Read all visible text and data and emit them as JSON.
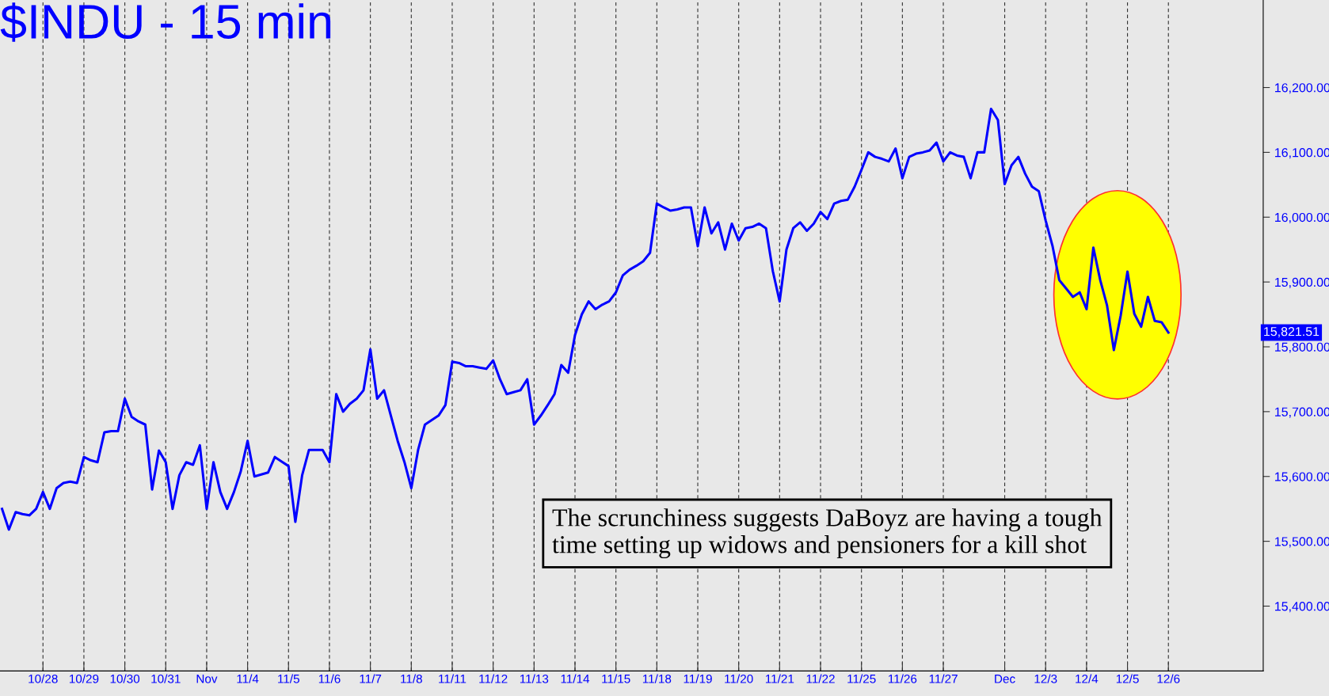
{
  "chart_data": {
    "type": "line",
    "title": "$INDU - 15 min",
    "categories": [
      null,
      null,
      null,
      null,
      null,
      null,
      "10/28",
      null,
      null,
      null,
      null,
      null,
      "10/29",
      null,
      null,
      null,
      null,
      null,
      "10/30",
      null,
      null,
      null,
      null,
      null,
      "10/31",
      null,
      null,
      null,
      null,
      null,
      "Nov",
      null,
      null,
      null,
      null,
      null,
      "11/4",
      null,
      null,
      null,
      null,
      null,
      "11/5",
      null,
      null,
      null,
      null,
      null,
      "11/6",
      null,
      null,
      null,
      null,
      null,
      "11/7",
      null,
      null,
      null,
      null,
      null,
      "11/8",
      null,
      null,
      null,
      null,
      null,
      "11/11",
      null,
      null,
      null,
      null,
      null,
      "11/12",
      null,
      null,
      null,
      null,
      null,
      "11/13",
      null,
      null,
      null,
      null,
      null,
      "11/14",
      null,
      null,
      null,
      null,
      null,
      "11/15",
      null,
      null,
      null,
      null,
      null,
      "11/18",
      null,
      null,
      null,
      null,
      null,
      "11/19",
      null,
      null,
      null,
      null,
      null,
      "11/20",
      null,
      null,
      null,
      null,
      null,
      "11/21",
      null,
      null,
      null,
      null,
      null,
      "11/22",
      null,
      null,
      null,
      null,
      null,
      "11/25",
      null,
      null,
      null,
      null,
      null,
      "11/26",
      null,
      null,
      null,
      null,
      null,
      "11/27",
      null,
      null,
      null,
      null,
      null,
      null,
      null,
      null,
      "Dec",
      null,
      null,
      null,
      null,
      null,
      "12/3",
      null,
      null,
      null,
      null,
      null,
      "12/4",
      null,
      null,
      null,
      null,
      null,
      "12/5",
      null,
      null,
      null,
      null,
      null,
      "12/6"
    ],
    "series": [
      {
        "color": "#0000ff",
        "values": [
          15550,
          15518,
          15545,
          15542,
          15540,
          15550,
          15576,
          15550,
          15582,
          15590,
          15592,
          15590,
          15630,
          15625,
          15622,
          15668,
          15670,
          15670,
          15720,
          15692,
          15685,
          15680,
          15580,
          15640,
          15622,
          15550,
          15602,
          15622,
          15618,
          15648,
          15550,
          15622,
          15576,
          15550,
          15576,
          15608,
          15655,
          15600,
          15603,
          15606,
          15630,
          15623,
          15616,
          15530,
          15602,
          15641,
          15641,
          15641,
          15622,
          15727,
          15700,
          15712,
          15720,
          15733,
          15796,
          15720,
          15733,
          15694,
          15655,
          15622,
          15582,
          15641,
          15680,
          15687,
          15694,
          15710,
          15777,
          15775,
          15770,
          15770,
          15768,
          15766,
          15779,
          15750,
          15727,
          15730,
          15733,
          15750,
          15680,
          15694,
          15710,
          15727,
          15772,
          15760,
          15818,
          15850,
          15870,
          15858,
          15865,
          15870,
          15884,
          15910,
          15919,
          15925,
          15932,
          15945,
          16021,
          16015,
          16010,
          16012,
          16015,
          16015,
          15955,
          16015,
          15975,
          15992,
          15950,
          15990,
          15964,
          15983,
          15985,
          15990,
          15983,
          15917,
          15870,
          15950,
          15983,
          15992,
          15979,
          15990,
          16008,
          15997,
          16021,
          16025,
          16027,
          16047,
          16073,
          16100,
          16093,
          16090,
          16086,
          16106,
          16060,
          16093,
          16098,
          16100,
          16103,
          16115,
          16086,
          16100,
          16095,
          16093,
          16060,
          16100,
          16100,
          16167,
          16150,
          16051,
          16080,
          16093,
          16067,
          16047,
          16040,
          15995,
          15956,
          15903,
          15890,
          15877,
          15884,
          15858,
          15953,
          15903,
          15864,
          15795,
          15848,
          15916,
          15851,
          15831,
          15877,
          15840,
          15838,
          15822
        ]
      }
    ],
    "ylim": [
      15300,
      16335
    ],
    "yticks": [
      {
        "value": 15400,
        "label": "15,400.00"
      },
      {
        "value": 15500,
        "label": "15,500.00"
      },
      {
        "value": 15600,
        "label": "15,600.00"
      },
      {
        "value": 15700,
        "label": "15,700.00"
      },
      {
        "value": 15800,
        "label": "15,800.00"
      },
      {
        "value": 15900,
        "label": "15,900.00"
      },
      {
        "value": 16000,
        "label": "16,000.00"
      },
      {
        "value": 16100,
        "label": "16,100.00"
      },
      {
        "value": 16200,
        "label": "16,200.00"
      }
    ],
    "grid": "x",
    "legend": false,
    "marker": "none",
    "line_style": "solid",
    "annotations": [
      "15,821.51",
      "The scrunchiness suggests DaBoyz are having a tough\ntime setting up widows and pensioners for a kill shot"
    ]
  }
}
